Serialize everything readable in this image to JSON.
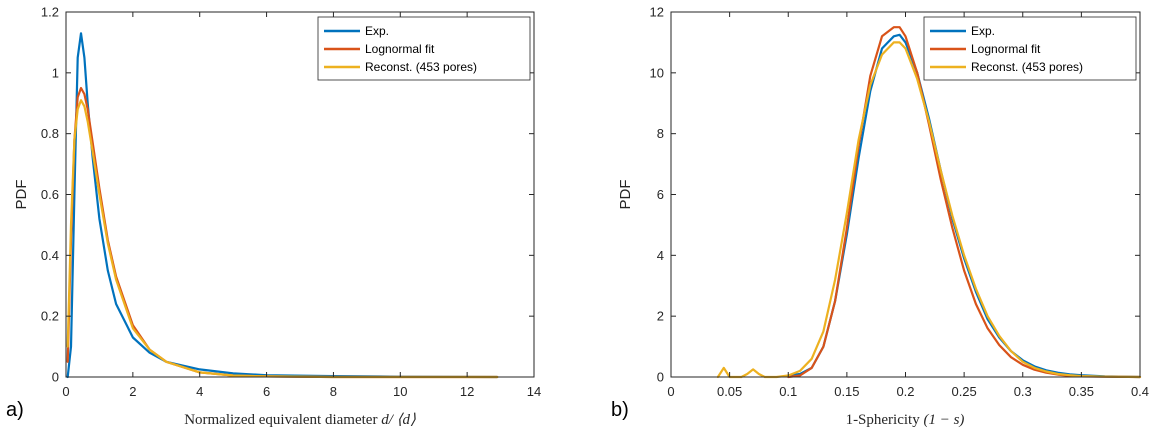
{
  "colors": {
    "exp": "#0072BD",
    "lognormal": "#D95319",
    "reconst": "#EDB120",
    "axis": "#262626"
  },
  "panels": [
    {
      "panel_label": "a)",
      "xlabel_text": "Normalized equivalent diameter ",
      "xlabel_math": "d/ ⟨d⟩",
      "ylabel": "PDF",
      "xticklabels": [
        "0",
        "2",
        "4",
        "6",
        "8",
        "10",
        "12",
        "14"
      ],
      "yticklabels": [
        "0",
        "0.2",
        "0.4",
        "0.6",
        "0.8",
        "1",
        "1.2"
      ],
      "legend": [
        "Exp.",
        "Lognormal fit",
        "Reconst. (453 pores)"
      ]
    },
    {
      "panel_label": "b)",
      "xlabel_text": "1-Sphericity ",
      "xlabel_math": "(1 − s)",
      "ylabel": "PDF",
      "xticklabels": [
        "0",
        "0.05",
        "0.1",
        "0.15",
        "0.2",
        "0.25",
        "0.3",
        "0.35",
        "0.4"
      ],
      "yticklabels": [
        "0",
        "2",
        "4",
        "6",
        "8",
        "10",
        "12"
      ],
      "legend": [
        "Exp.",
        "Lognormal fit",
        "Reconst. (453 pores)"
      ]
    }
  ],
  "chart_data": [
    {
      "type": "line",
      "xlabel": "Normalized equivalent diameter d/ ⟨d⟩",
      "ylabel": "PDF",
      "xlim": [
        0,
        14
      ],
      "ylim": [
        0,
        1.2
      ],
      "xticks": [
        0,
        2,
        4,
        6,
        8,
        10,
        12,
        14
      ],
      "yticks": [
        0,
        0.2,
        0.4,
        0.6,
        0.8,
        1.0,
        1.2
      ],
      "legend_position": "top-right",
      "grid": false,
      "series": [
        {
          "name": "Exp.",
          "x": [
            0.05,
            0.15,
            0.25,
            0.35,
            0.45,
            0.55,
            0.65,
            0.8,
            1.0,
            1.25,
            1.5,
            2.0,
            2.5,
            3.0,
            4.0,
            5.0,
            6.0,
            8.0,
            10.0,
            12.9
          ],
          "y": [
            0.0,
            0.1,
            0.6,
            1.05,
            1.13,
            1.05,
            0.9,
            0.72,
            0.52,
            0.35,
            0.24,
            0.13,
            0.08,
            0.05,
            0.025,
            0.012,
            0.006,
            0.003,
            0.001,
            0.0
          ]
        },
        {
          "name": "Lognormal fit",
          "x": [
            0.05,
            0.15,
            0.25,
            0.35,
            0.45,
            0.55,
            0.65,
            0.8,
            1.0,
            1.25,
            1.5,
            2.0,
            2.5,
            3.0,
            4.0,
            5.0,
            6.0,
            8.0,
            10.0,
            12.9
          ],
          "y": [
            0.05,
            0.45,
            0.78,
            0.92,
            0.95,
            0.93,
            0.88,
            0.77,
            0.62,
            0.45,
            0.33,
            0.17,
            0.09,
            0.05,
            0.015,
            0.005,
            0.002,
            0.0,
            0.0,
            0.0
          ]
        },
        {
          "name": "Reconst. (453 pores)",
          "x": [
            0.05,
            0.15,
            0.25,
            0.35,
            0.45,
            0.55,
            0.65,
            0.8,
            1.0,
            1.25,
            1.5,
            2.0,
            2.5,
            3.0,
            4.0,
            5.0,
            6.0,
            8.0,
            10.0,
            12.9
          ],
          "y": [
            0.1,
            0.5,
            0.78,
            0.88,
            0.91,
            0.89,
            0.84,
            0.74,
            0.6,
            0.44,
            0.32,
            0.16,
            0.09,
            0.05,
            0.015,
            0.005,
            0.002,
            0.0,
            0.0,
            0.0
          ]
        }
      ]
    },
    {
      "type": "line",
      "xlabel": "1-Sphericity (1 − s)",
      "ylabel": "PDF",
      "xlim": [
        0,
        0.4
      ],
      "ylim": [
        0,
        12
      ],
      "xticks": [
        0,
        0.05,
        0.1,
        0.15,
        0.2,
        0.25,
        0.3,
        0.35,
        0.4
      ],
      "yticks": [
        0,
        2,
        4,
        6,
        8,
        10,
        12
      ],
      "legend_position": "top-right",
      "grid": false,
      "series": [
        {
          "name": "Exp.",
          "x": [
            0.1,
            0.11,
            0.12,
            0.13,
            0.14,
            0.15,
            0.16,
            0.17,
            0.18,
            0.19,
            0.195,
            0.2,
            0.21,
            0.22,
            0.23,
            0.24,
            0.25,
            0.26,
            0.27,
            0.28,
            0.29,
            0.3,
            0.31,
            0.32,
            0.33,
            0.34,
            0.35,
            0.37,
            0.4
          ],
          "y": [
            0.05,
            0.1,
            0.3,
            1.0,
            2.5,
            4.7,
            7.2,
            9.4,
            10.8,
            11.2,
            11.25,
            11.0,
            10.0,
            8.5,
            6.8,
            5.2,
            3.9,
            2.8,
            1.9,
            1.3,
            0.85,
            0.55,
            0.35,
            0.22,
            0.14,
            0.09,
            0.06,
            0.02,
            0.0
          ]
        },
        {
          "name": "Lognormal fit",
          "x": [
            0.1,
            0.11,
            0.12,
            0.13,
            0.14,
            0.15,
            0.16,
            0.17,
            0.18,
            0.19,
            0.195,
            0.2,
            0.21,
            0.22,
            0.23,
            0.24,
            0.25,
            0.26,
            0.27,
            0.28,
            0.29,
            0.3,
            0.31,
            0.32,
            0.33,
            0.34,
            0.35,
            0.37,
            0.4
          ],
          "y": [
            0.0,
            0.05,
            0.3,
            1.0,
            2.5,
            4.9,
            7.6,
            9.9,
            11.2,
            11.5,
            11.5,
            11.2,
            10.0,
            8.3,
            6.5,
            4.9,
            3.5,
            2.4,
            1.6,
            1.05,
            0.65,
            0.4,
            0.24,
            0.14,
            0.08,
            0.04,
            0.02,
            0.01,
            0.0
          ]
        },
        {
          "name": "Reconst. (453 pores)",
          "x": [
            0.04,
            0.045,
            0.05,
            0.055,
            0.06,
            0.065,
            0.07,
            0.075,
            0.08,
            0.09,
            0.1,
            0.11,
            0.12,
            0.13,
            0.14,
            0.15,
            0.16,
            0.17,
            0.18,
            0.19,
            0.195,
            0.2,
            0.21,
            0.22,
            0.23,
            0.24,
            0.25,
            0.26,
            0.27,
            0.28,
            0.29,
            0.3,
            0.31,
            0.32,
            0.33,
            0.34,
            0.35,
            0.37,
            0.4
          ],
          "y": [
            0.0,
            0.3,
            0.0,
            0.0,
            0.0,
            0.1,
            0.25,
            0.1,
            0.0,
            0.0,
            0.05,
            0.2,
            0.6,
            1.5,
            3.2,
            5.4,
            7.8,
            9.6,
            10.6,
            11.0,
            11.0,
            10.8,
            9.8,
            8.4,
            6.8,
            5.3,
            4.0,
            2.9,
            2.0,
            1.35,
            0.85,
            0.5,
            0.3,
            0.18,
            0.1,
            0.06,
            0.03,
            0.01,
            0.0
          ]
        }
      ]
    }
  ]
}
